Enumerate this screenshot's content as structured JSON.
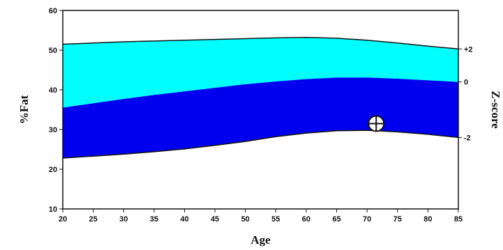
{
  "chart_data": {
    "type": "area",
    "title": "",
    "xlabel": "Age",
    "ylabel": "%Fat",
    "right_label": "Z-score",
    "xlim": [
      20,
      85
    ],
    "ylim": [
      10,
      60
    ],
    "x_ticks": [
      "20",
      "25",
      "30",
      "35",
      "40",
      "45",
      "50",
      "55",
      "60",
      "65",
      "70",
      "75",
      "80",
      "85"
    ],
    "y_ticks": [
      "10",
      "20",
      "30",
      "40",
      "50",
      "60"
    ],
    "x": [
      20,
      25,
      30,
      35,
      40,
      45,
      50,
      55,
      60,
      65,
      70,
      75,
      80,
      85
    ],
    "series": [
      {
        "z": "+2",
        "values": [
          51.5,
          51.8,
          52.1,
          52.3,
          52.5,
          52.7,
          52.9,
          53.1,
          53.2,
          53.0,
          52.5,
          51.8,
          51.0,
          50.3
        ],
        "color": "#00FFFF"
      },
      {
        "z": "0",
        "values": [
          35.5,
          36.6,
          37.7,
          38.7,
          39.6,
          40.5,
          41.4,
          42.1,
          42.7,
          43.1,
          43.1,
          42.8,
          42.4,
          42.0
        ],
        "color": "#0000EE"
      },
      {
        "z": "-2",
        "values": [
          22.8,
          23.3,
          23.8,
          24.4,
          25.1,
          26.0,
          27.0,
          28.2,
          29.1,
          29.7,
          29.8,
          29.4,
          28.8,
          28.0
        ],
        "color": "#FFFFFF"
      }
    ],
    "point": {
      "x": 71.5,
      "y": 31.5
    }
  }
}
